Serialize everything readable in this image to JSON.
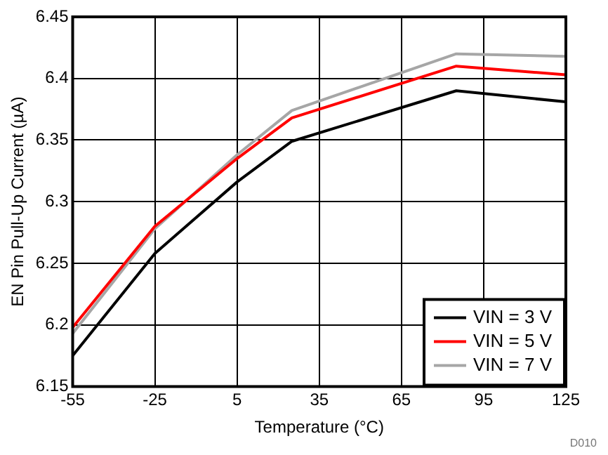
{
  "chart_data": {
    "type": "line",
    "xlabel": "Temperature (°C)",
    "ylabel": "EN Pin Pull-Up Current (µA)",
    "x": [
      -55,
      -25,
      5,
      25,
      85,
      125
    ],
    "series": [
      {
        "name": "VIN = 3 V",
        "color": "#000000",
        "values": [
          6.175,
          6.258,
          6.316,
          6.349,
          6.39,
          6.381
        ]
      },
      {
        "name": "VIN = 5 V",
        "color": "#ff0000",
        "values": [
          6.198,
          6.28,
          6.335,
          6.368,
          6.41,
          6.403
        ]
      },
      {
        "name": "VIN = 7 V",
        "color": "#a6a6a6",
        "values": [
          6.193,
          6.278,
          6.338,
          6.374,
          6.42,
          6.418
        ]
      }
    ],
    "xlim": [
      -55,
      125
    ],
    "xticks": [
      -55,
      -25,
      5,
      35,
      65,
      95,
      125
    ],
    "ylim": [
      6.15,
      6.45
    ],
    "yticks": [
      6.15,
      6.2,
      6.25,
      6.3,
      6.35,
      6.4,
      6.45
    ],
    "grid": true,
    "legend": "bottom right",
    "marker": "none",
    "line_style": "solid",
    "annotations": [
      "D010"
    ]
  }
}
